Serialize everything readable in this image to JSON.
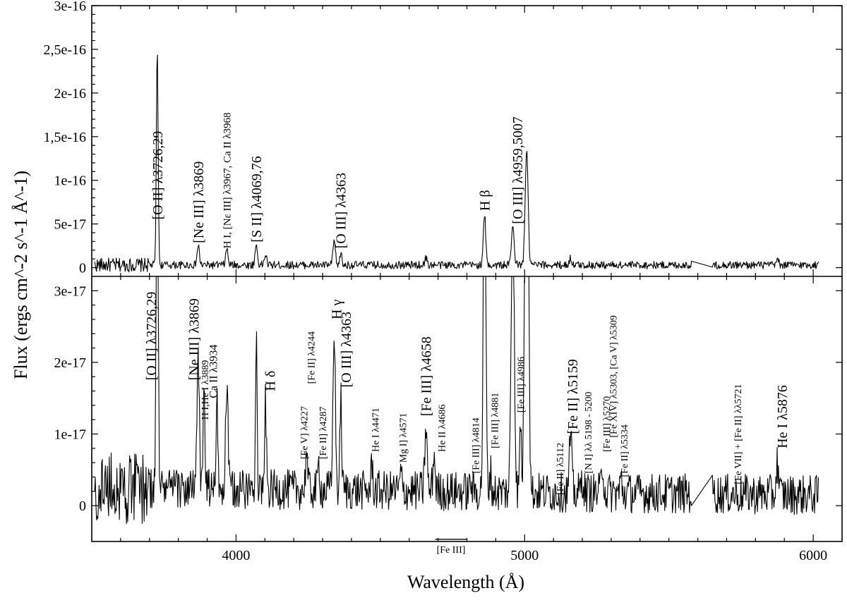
{
  "chart_data": [
    {
      "type": "line",
      "panel": "top",
      "xlabel": "Wavelength (Å)",
      "ylabel": "Flux (ergs cm^-2 s^-1 Å^-1)",
      "xlim": [
        3500,
        6100
      ],
      "ylim": [
        -1e-17,
        3e-16
      ],
      "yticks": [
        0,
        5e-17,
        1e-16,
        1.5e-16,
        2e-16,
        2.5e-16,
        3e-16
      ],
      "ytick_labels": [
        "0",
        "5e-17",
        "1e-16",
        "1,5e-16",
        "2e-16",
        "2,5e-16",
        "3e-16"
      ],
      "grid": false,
      "continuum": 3e-18,
      "gap": [
        5580,
        5650
      ],
      "lines": [
        {
          "x": 3727,
          "y": 2.5e-16,
          "w": 3
        },
        {
          "x": 3869,
          "y": 2.2e-17,
          "w": 4
        },
        {
          "x": 3968,
          "y": 1.8e-17,
          "w": 4
        },
        {
          "x": 4070,
          "y": 2.3e-17,
          "w": 4
        },
        {
          "x": 4102,
          "y": 1.2e-17,
          "w": 4
        },
        {
          "x": 4340,
          "y": 2.8e-17,
          "w": 4
        },
        {
          "x": 4363,
          "y": 1.5e-17,
          "w": 3
        },
        {
          "x": 4658,
          "y": 8e-18,
          "w": 4
        },
        {
          "x": 4861,
          "y": 5.8e-17,
          "w": 4
        },
        {
          "x": 4959,
          "y": 4.2e-17,
          "w": 5
        },
        {
          "x": 5007,
          "y": 1.32e-16,
          "w": 5
        },
        {
          "x": 5159,
          "y": 8e-18,
          "w": 4
        },
        {
          "x": 5876,
          "y": 6e-18,
          "w": 4
        }
      ],
      "annotations": [
        {
          "text": "[O II] λ3726,29",
          "x": 3727,
          "y": 5.5e-17,
          "size": 20
        },
        {
          "text": "[Ne III] λ3869",
          "x": 3869,
          "y": 2.8e-17,
          "size": 20
        },
        {
          "text": "H I, [Nε III] λ3967, Ca II λ3968",
          "x": 3968,
          "y": 2.2e-17,
          "size": 15
        },
        {
          "text": "[S II] λ4069,76",
          "x": 4070,
          "y": 2.9e-17,
          "size": 20
        },
        {
          "text": "[O III] λ4363",
          "x": 4362,
          "y": 2.2e-17,
          "size": 20
        },
        {
          "text": "H β",
          "x": 4861,
          "y": 6.5e-17,
          "size": 20
        },
        {
          "text": "[O III] λ4959,5007",
          "x": 4975,
          "y": 5e-17,
          "size": 20
        }
      ]
    },
    {
      "type": "line",
      "panel": "bottom",
      "xlim": [
        3500,
        6100
      ],
      "ylim": [
        -5e-18,
        3.2e-17
      ],
      "xticks": [
        4000,
        5000,
        6000
      ],
      "xtick_labels": [
        "4000",
        "5000",
        "6000"
      ],
      "yticks": [
        0,
        1e-17,
        2e-17,
        3e-17
      ],
      "ytick_labels": [
        "0",
        "1e-17",
        "2e-17",
        "3e-17"
      ],
      "grid": false,
      "continuum_start": 2.5e-18,
      "continuum_end": 1.5e-18,
      "gap": [
        5580,
        5650
      ],
      "lines": [
        {
          "x": 3727,
          "y": 8e-17,
          "w": 3
        },
        {
          "x": 3869,
          "y": 1.8e-17,
          "w": 4
        },
        {
          "x": 3889,
          "y": 1.5e-17,
          "w": 3
        },
        {
          "x": 3934,
          "y": 1.2e-17,
          "w": 3
        },
        {
          "x": 3968,
          "y": 1.45e-17,
          "w": 4
        },
        {
          "x": 4070,
          "y": 2.2e-17,
          "w": 3
        },
        {
          "x": 4102,
          "y": 1.2e-17,
          "w": 3
        },
        {
          "x": 4244,
          "y": 6e-18,
          "w": 3
        },
        {
          "x": 4287,
          "y": 4e-18,
          "w": 3
        },
        {
          "x": 4340,
          "y": 2.3e-17,
          "w": 4
        },
        {
          "x": 4363,
          "y": 1.3e-17,
          "w": 3
        },
        {
          "x": 4471,
          "y": 4e-18,
          "w": 3
        },
        {
          "x": 4571,
          "y": 2.5e-18,
          "w": 3
        },
        {
          "x": 4658,
          "y": 9e-18,
          "w": 4
        },
        {
          "x": 4686,
          "y": 5e-18,
          "w": 4
        },
        {
          "x": 4814,
          "y": 1.5e-18,
          "w": 3
        },
        {
          "x": 4861,
          "y": 6e-17,
          "w": 4
        },
        {
          "x": 4881,
          "y": 3e-18,
          "w": 3
        },
        {
          "x": 4959,
          "y": 4.5e-17,
          "w": 5
        },
        {
          "x": 4986,
          "y": 1e-17,
          "w": 3
        },
        {
          "x": 5007,
          "y": 1.3e-16,
          "w": 5
        },
        {
          "x": 5159,
          "y": 8e-18,
          "w": 4
        },
        {
          "x": 5200,
          "y": 2e-18,
          "w": 4
        },
        {
          "x": 5270,
          "y": 4e-18,
          "w": 4
        },
        {
          "x": 5334,
          "y": 2e-18,
          "w": 3
        },
        {
          "x": 5876,
          "y": 4.5e-18,
          "w": 4
        }
      ],
      "fe3_bracket": {
        "x1": 4690,
        "x2": 4800,
        "y": -4.7e-18,
        "label": "[Fe III]"
      },
      "annotations": [
        {
          "text": "[O II] λ3726,29",
          "x": 3705,
          "y": 1.75e-17,
          "size": 20
        },
        {
          "text": "[Ne III] λ3869",
          "x": 3853,
          "y": 1.75e-17,
          "size": 20
        },
        {
          "text": "H I,He I λ3889",
          "x": 3892,
          "y": 1.2e-17,
          "size": 14
        },
        {
          "text": "Ca II λ3934",
          "x": 3920,
          "y": 1.5e-17,
          "size": 16
        },
        {
          "text": "H δ",
          "x": 4118,
          "y": 1.6e-17,
          "size": 20
        },
        {
          "text": "[Fe V] λ4227",
          "x": 4235,
          "y": 6.5e-18,
          "size": 14
        },
        {
          "text": "[Fe II] λ4244",
          "x": 4260,
          "y": 1.7e-17,
          "size": 14
        },
        {
          "text": "[Fe II] λ4287",
          "x": 4300,
          "y": 6.5e-18,
          "size": 14
        },
        {
          "text": "H γ",
          "x": 4348,
          "y": 2.6e-17,
          "size": 20
        },
        {
          "text": "[O III] λ4363",
          "x": 4380,
          "y": 1.65e-17,
          "size": 20
        },
        {
          "text": "He I λ4471",
          "x": 4482,
          "y": 7.5e-18,
          "size": 14
        },
        {
          "text": "Mg I] λ4571",
          "x": 4578,
          "y": 6e-18,
          "size": 14
        },
        {
          "text": "[Fe III] λ4658",
          "x": 4658,
          "y": 1.25e-17,
          "size": 20
        },
        {
          "text": "He II λ4686",
          "x": 4712,
          "y": 7.5e-18,
          "size": 14
        },
        {
          "text": "[Fe III] λ4814",
          "x": 4830,
          "y": 4.5e-18,
          "size": 14
        },
        {
          "text": "[Fe III] λ4881",
          "x": 4896,
          "y": 8e-18,
          "size": 14
        },
        {
          "text": "[Fe III] λ4986",
          "x": 4986,
          "y": 1.3e-17,
          "size": 14
        },
        {
          "text": "[Fe II] λ5112",
          "x": 5122,
          "y": 1.5e-18,
          "size": 14
        },
        {
          "text": "[Fe II] λ5159",
          "x": 5166,
          "y": 1e-17,
          "size": 20
        },
        {
          "text": "[N I] λλ 5198 - 5200",
          "x": 5220,
          "y": 4.5e-18,
          "size": 14
        },
        {
          "text": "[Fe III] λ5270",
          "x": 5283,
          "y": 7.5e-18,
          "size": 14
        },
        {
          "text": "[Fe XIV] λ5303, [Ca V] λ5309",
          "x": 5307,
          "y": 9.5e-18,
          "size": 14
        },
        {
          "text": "[Fe II] λ5334",
          "x": 5345,
          "y": 4e-18,
          "size": 14
        },
        {
          "text": "[Fe VII] + [Fe II] λλ5721",
          "x": 5738,
          "y": 3e-18,
          "size": 14
        },
        {
          "text": "He I λ5876",
          "x": 5892,
          "y": 8e-18,
          "size": 20
        }
      ]
    }
  ]
}
